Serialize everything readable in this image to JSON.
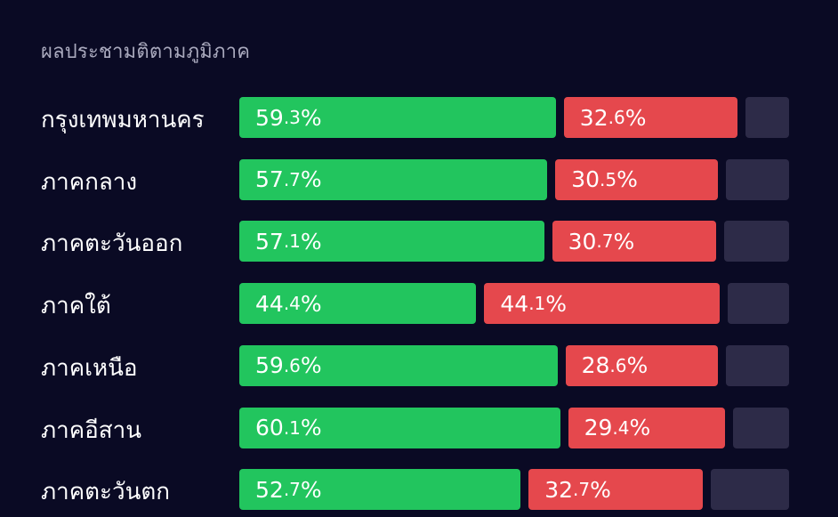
{
  "chart_data": {
    "type": "bar",
    "orientation": "horizontal",
    "stacked": true,
    "title": "ผลประชามติตามภูมิภาค",
    "categories": [
      "กรุงเทพมหานคร",
      "ภาคกลาง",
      "ภาคตะวันออก",
      "ภาคใต้",
      "ภาคเหนือ",
      "ภาคอีสาน",
      "ภาคตะวันตก"
    ],
    "series": [
      {
        "values": [
          59.3,
          57.7,
          57.1,
          44.4,
          59.6,
          60.1,
          52.7
        ],
        "color": "#22c55e"
      },
      {
        "values": [
          32.6,
          30.5,
          30.7,
          44.1,
          28.6,
          29.4,
          32.7
        ],
        "color": "#e5484d"
      },
      {
        "values": [
          8.1,
          11.8,
          12.2,
          11.5,
          11.8,
          10.5,
          14.6
        ],
        "color": "#2d2b48"
      }
    ],
    "value_suffix": "%",
    "legend": "none",
    "grid": false
  }
}
